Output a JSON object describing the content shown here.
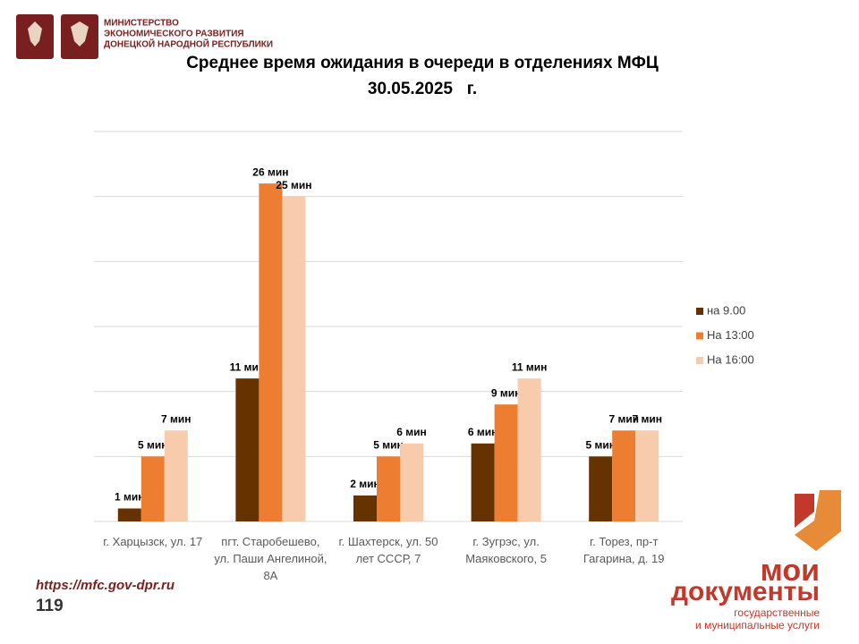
{
  "header": {
    "ministry_lines": [
      "МИНИСТЕРСТВО",
      "ЭКОНОМИЧЕСКОГО РАЗВИТИЯ",
      "ДОНЕЦКОЙ НАРОДНОЙ РЕСПУБЛИКИ"
    ]
  },
  "chart_data": {
    "type": "bar",
    "title": "Среднее время ожидания в очереди в отделениях МФЦ",
    "subtitle": "30.05.2025   г.",
    "categories": [
      "г. Харцызск, ул. 17",
      "пгт. Старобешево, ул. Паши Ангелиной, 8А",
      "г. Шахтерск, ул. 50 лет СССР, 7",
      "г. Зугрэс, ул. Маяковского, 5",
      "г. Торез, пр-т Гагарина, д. 19"
    ],
    "series": [
      {
        "name": "на 9.00",
        "color": "#663300",
        "values": [
          1,
          11,
          2,
          6,
          5
        ],
        "value_labels": [
          "1 мин",
          "11 мин",
          "2 мин",
          "6 мин",
          "5 мин"
        ]
      },
      {
        "name": "На 13:00",
        "color": "#ed7d31",
        "values": [
          5,
          26,
          5,
          9,
          7
        ],
        "value_labels": [
          "5 мин",
          "26 мин",
          "5 мин",
          "9 мин",
          "7 мин"
        ]
      },
      {
        "name": "На 16:00",
        "color": "#f8cbad",
        "values": [
          7,
          25,
          6,
          11,
          7
        ],
        "value_labels": [
          "7 мин",
          "25 мин",
          "6 мин",
          "11 мин",
          "7 мин"
        ]
      }
    ],
    "ylim": [
      0,
      30
    ],
    "yticks": [
      0,
      5,
      10,
      15,
      20,
      25,
      30
    ],
    "grid": true,
    "legend": "right"
  },
  "footer": {
    "url": "https://mfc.gov-dpr.ru",
    "page_number": "119",
    "brand_lines": [
      "мои",
      "документы"
    ],
    "brand_tagline": [
      "государственные",
      "и муниципальные услуги"
    ]
  }
}
